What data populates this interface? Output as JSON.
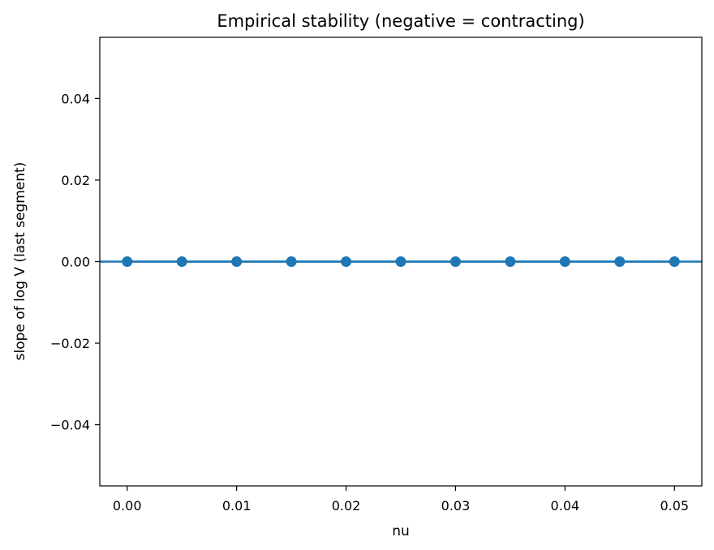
{
  "chart_data": {
    "type": "scatter",
    "title": "Empirical stability (negative = contracting)",
    "xlabel": "nu",
    "ylabel": "slope of log V (last segment)",
    "xlim": [
      -0.0025,
      0.0525
    ],
    "ylim": [
      -0.055,
      0.055
    ],
    "xticks": [
      0.0,
      0.01,
      0.02,
      0.03,
      0.04,
      0.05
    ],
    "xtick_labels": [
      "0.00",
      "0.01",
      "0.02",
      "0.03",
      "0.04",
      "0.05"
    ],
    "yticks": [
      -0.04,
      -0.02,
      0.0,
      0.02,
      0.04
    ],
    "ytick_labels": [
      "−0.04",
      "−0.02",
      "0.00",
      "0.02",
      "0.04"
    ],
    "grid": false,
    "reference_line": {
      "y": 0.0
    },
    "series": [
      {
        "x": [
          0.0,
          0.005,
          0.01,
          0.015,
          0.02,
          0.025,
          0.03,
          0.035,
          0.04,
          0.045,
          0.05
        ],
        "y": [
          0.0,
          0.0,
          0.0,
          0.0,
          0.0,
          0.0,
          0.0,
          0.0,
          0.0,
          0.0,
          0.0
        ],
        "color": "#1f77b4"
      }
    ]
  }
}
